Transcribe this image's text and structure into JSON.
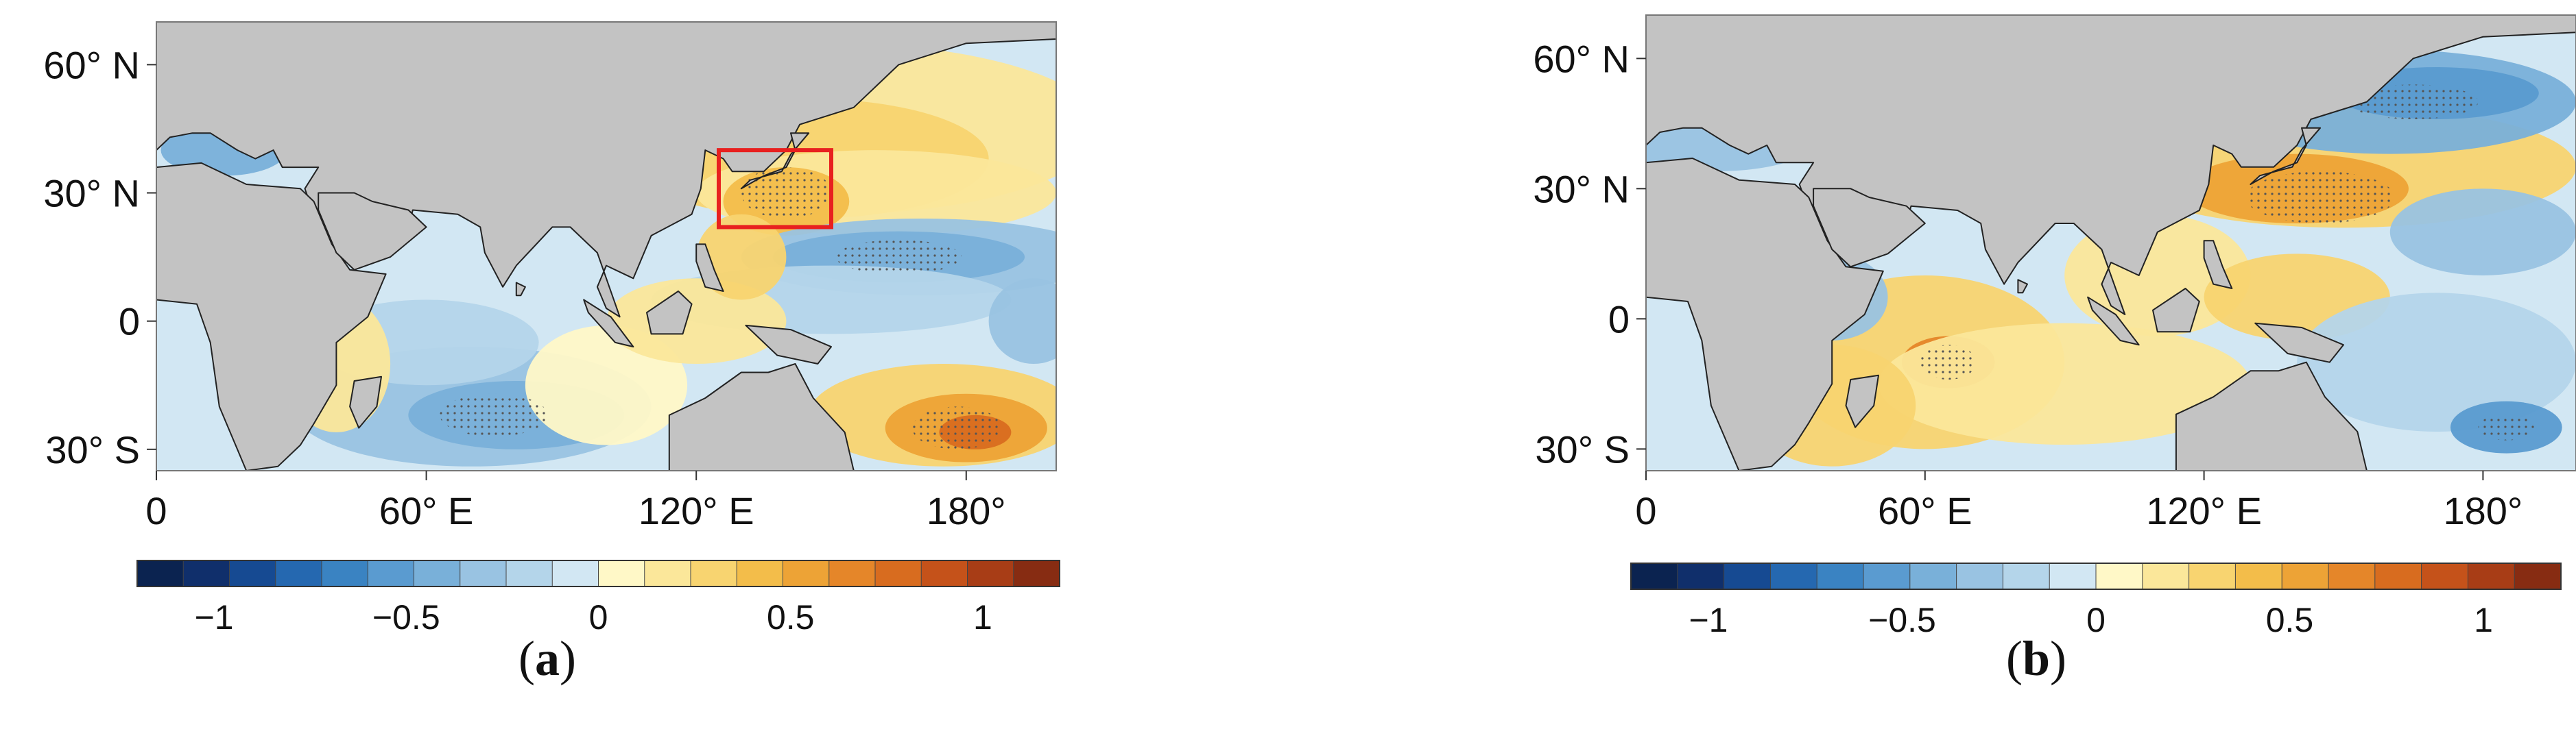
{
  "panels": [
    {
      "id": "a",
      "tag": "a",
      "lat_labels": [
        "60° N",
        "30° N",
        "0",
        "30° S"
      ],
      "lon_labels": [
        "0",
        "60° E",
        "120° E",
        "180°"
      ],
      "colorbar_ticks": [
        "−1",
        "−0.5",
        "0",
        "0.5",
        "1"
      ],
      "has_box": true
    },
    {
      "id": "b",
      "tag": "b",
      "lat_labels": [
        "60° N",
        "30° N",
        "0",
        "30° S"
      ],
      "lon_labels": [
        "0",
        "60° E",
        "120° E",
        "180°"
      ],
      "colorbar_ticks": [
        "−1",
        "−0.5",
        "0",
        "0.5",
        "1"
      ],
      "has_box": false
    }
  ],
  "colors": {
    "land": "#c3c3c3",
    "box": "#e8201f",
    "colorbar": [
      "#0b2350",
      "#102f6b",
      "#164a92",
      "#2568b0",
      "#3a83c2",
      "#5a9bd0",
      "#79b0d9",
      "#99c3e2",
      "#b4d5ea",
      "#d2e7f3",
      "#fff8c7",
      "#fbe79a",
      "#f8d470",
      "#f3bd4a",
      "#eda336",
      "#e58629",
      "#d86c1f",
      "#c5521a",
      "#a83d16",
      "#872c12"
    ]
  }
}
